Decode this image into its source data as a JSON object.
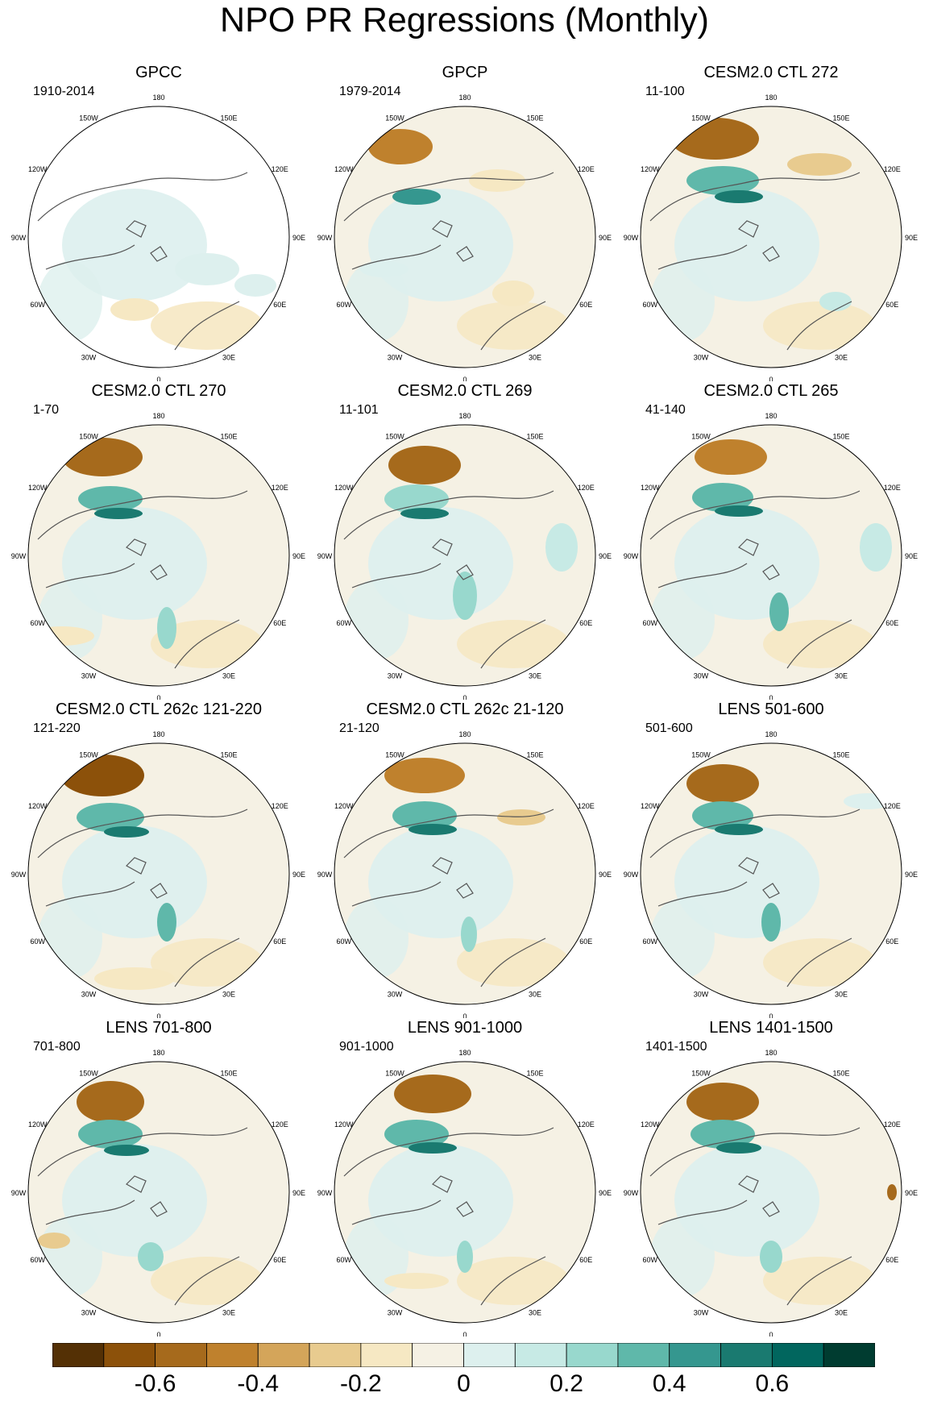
{
  "title": "NPO PR Regressions (Monthly)",
  "panels": [
    {
      "title": "GPCC",
      "period": "1910-2014"
    },
    {
      "title": "GPCP",
      "period": "1979-2014"
    },
    {
      "title": "CESM2.0 CTL 272",
      "period": "11-100"
    },
    {
      "title": "CESM2.0 CTL 270",
      "period": "1-70"
    },
    {
      "title": "CESM2.0 CTL 269",
      "period": "11-101"
    },
    {
      "title": "CESM2.0 CTL 265",
      "period": "41-140"
    },
    {
      "title": "CESM2.0 CTL 262c 121-220",
      "period": "121-220"
    },
    {
      "title": "CESM2.0 CTL 262c 21-120",
      "period": "21-120"
    },
    {
      "title": "LENS 501-600",
      "period": "501-600"
    },
    {
      "title": "LENS 701-800",
      "period": "701-800"
    },
    {
      "title": "LENS 901-1000",
      "period": "901-1000"
    },
    {
      "title": "LENS 1401-1500",
      "period": "1401-1500"
    }
  ],
  "longitude_labels": [
    "180",
    "150E",
    "120E",
    "90E",
    "60E",
    "30E",
    "0",
    "30W",
    "60W",
    "90W",
    "120W",
    "150W"
  ],
  "colorbar": {
    "colors": [
      "#543005",
      "#8c510a",
      "#a66a1c",
      "#bf812d",
      "#d4a55a",
      "#e8cb8f",
      "#f6e8c3",
      "#f5f1e4",
      "#ddf0ee",
      "#c7eae5",
      "#98d8cd",
      "#5fb8aa",
      "#35978f",
      "#1a7a70",
      "#01665e",
      "#003c30"
    ],
    "tick_labels": [
      "-0.6",
      "-0.4",
      "-0.2",
      "0",
      "0.2",
      "0.4",
      "0.6"
    ],
    "tick_values": [
      -0.6,
      -0.4,
      -0.2,
      0,
      0.2,
      0.4,
      0.6
    ],
    "min": -0.8,
    "max": 0.8
  }
}
